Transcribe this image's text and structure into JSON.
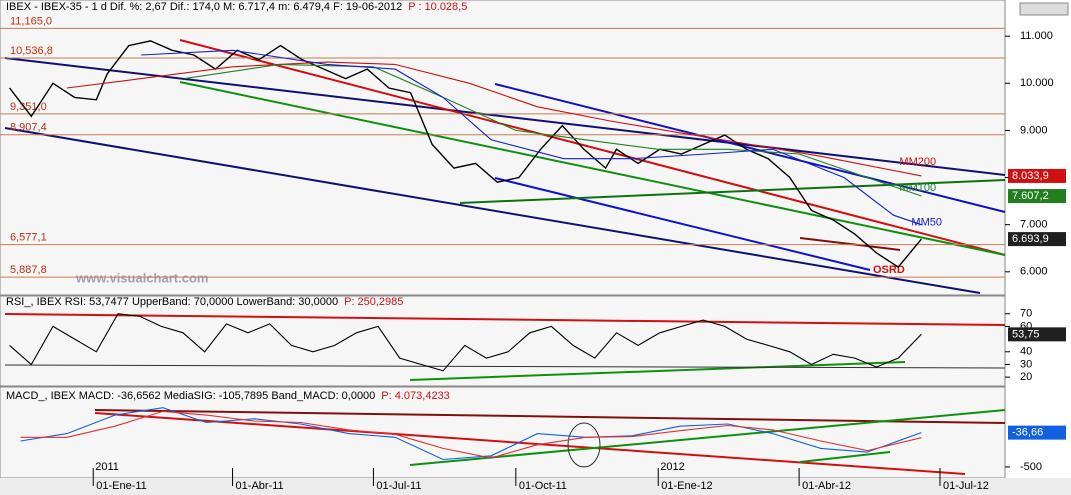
{
  "chart_data": [
    {
      "type": "line",
      "header": "IBEX - IBEX-35 -  1 d Dif. %: 2,67 Dif.: 174,0 M: 6.717,4 m: 6.479,4 F: 19-06-2012",
      "header_p": "P : 10.028,5",
      "watermark": "www.visualchart.com",
      "annotation": "OSRD",
      "ylim": [
        5550,
        11470
      ],
      "yticks": [
        {
          "value": 11000,
          "label": "11.000"
        },
        {
          "value": 10000,
          "label": "10.000"
        },
        {
          "value": 9000,
          "label": "9.000"
        },
        {
          "value": 8000,
          "label": "8.000"
        },
        {
          "value": 7000,
          "label": "7.000"
        },
        {
          "value": 6000,
          "label": "6.000"
        }
      ],
      "levels": [
        {
          "value": 11165,
          "label": "11,165,0"
        },
        {
          "value": 10536.8,
          "label": "10,536,8"
        },
        {
          "value": 9351,
          "label": "9,351,0"
        },
        {
          "value": 8907.4,
          "label": "8,907,4"
        },
        {
          "value": 6577.1,
          "label": "6,577,1"
        },
        {
          "value": 5887.8,
          "label": "5,887,8"
        }
      ],
      "series": [
        {
          "color": "#000000",
          "tag": "6.693,9",
          "x": [
            "2010-11-08",
            "2010-11-22",
            "2010-12-06",
            "2010-12-20",
            "2011-01-03",
            "2011-01-10",
            "2011-01-24",
            "2011-02-07",
            "2011-02-21",
            "2011-03-07",
            "2011-03-21",
            "2011-04-04",
            "2011-04-18",
            "2011-05-02",
            "2011-05-16",
            "2011-05-30",
            "2011-06-13",
            "2011-06-27",
            "2011-07-11",
            "2011-07-25",
            "2011-08-08",
            "2011-08-22",
            "2011-09-05",
            "2011-09-19",
            "2011-10-03",
            "2011-10-17",
            "2011-10-31",
            "2011-11-14",
            "2011-11-28",
            "2011-12-05",
            "2011-12-19",
            "2012-01-02",
            "2012-01-16",
            "2012-01-30",
            "2012-02-13",
            "2012-02-27",
            "2012-03-12",
            "2012-03-26",
            "2012-04-09",
            "2012-04-23",
            "2012-05-07",
            "2012-05-21",
            "2012-06-04",
            "2012-06-19"
          ],
          "values": [
            9900,
            9300,
            10000,
            9700,
            9650,
            10200,
            10800,
            10900,
            10700,
            10600,
            10300,
            10700,
            10500,
            10800,
            10500,
            10300,
            10100,
            10300,
            9900,
            9800,
            8700,
            8200,
            8300,
            7900,
            8000,
            8600,
            9100,
            8600,
            8200,
            8600,
            8300,
            8600,
            8500,
            8700,
            8900,
            8600,
            8400,
            8000,
            7300,
            7100,
            6800,
            6400,
            6100,
            6693.9
          ]
        },
        {
          "name": "MM200",
          "color": "#d01010",
          "tag": "8.033,9",
          "x": [
            "2010-12-15",
            "2011-02-01",
            "2011-04-01",
            "2011-06-01",
            "2011-07-15",
            "2011-09-01",
            "2011-10-15",
            "2011-12-01",
            "2012-01-15",
            "2012-03-01",
            "2012-04-15",
            "2012-06-19"
          ],
          "values": [
            9900,
            10100,
            10350,
            10450,
            10400,
            10000,
            9500,
            9200,
            8950,
            8700,
            8450,
            8033.9
          ]
        },
        {
          "name": "MM100",
          "color": "#208020",
          "tag": "7.607,2",
          "x": [
            "2011-03-01",
            "2011-05-01",
            "2011-07-01",
            "2011-08-15",
            "2011-10-01",
            "2011-11-15",
            "2012-01-01",
            "2012-02-15",
            "2012-04-01",
            "2012-05-15",
            "2012-06-19"
          ],
          "values": [
            10100,
            10400,
            10350,
            9700,
            9000,
            8800,
            8600,
            8600,
            8500,
            8000,
            7607.2
          ]
        },
        {
          "name": "MM50",
          "color": "#1020d0",
          "x": [
            "2011-02-01",
            "2011-04-01",
            "2011-06-01",
            "2011-07-15",
            "2011-08-15",
            "2011-09-15",
            "2011-11-01",
            "2011-12-15",
            "2012-02-01",
            "2012-03-15",
            "2012-04-30",
            "2012-06-01",
            "2012-06-19"
          ],
          "values": [
            10600,
            10700,
            10400,
            10300,
            9700,
            8800,
            8400,
            8400,
            8500,
            8600,
            8000,
            7200,
            7000
          ]
        }
      ]
    },
    {
      "type": "line",
      "header": "RSI_, IBEX RSI: 53,7477 UpperBand: 70,0000 LowerBand: 30,0000",
      "header_p": "P: 250,2985",
      "ylim": [
        13,
        84
      ],
      "yticks": [
        70,
        60,
        40,
        30,
        20
      ],
      "series": [
        {
          "color": "#000000",
          "tag": "53,75",
          "x": [
            "2010-11-08",
            "2010-11-22",
            "2010-12-06",
            "2010-12-20",
            "2011-01-03",
            "2011-01-17",
            "2011-01-31",
            "2011-02-14",
            "2011-02-28",
            "2011-03-14",
            "2011-03-28",
            "2011-04-11",
            "2011-04-25",
            "2011-05-09",
            "2011-05-23",
            "2011-06-06",
            "2011-06-20",
            "2011-07-04",
            "2011-07-18",
            "2011-08-01",
            "2011-08-15",
            "2011-08-29",
            "2011-09-12",
            "2011-09-26",
            "2011-10-10",
            "2011-10-24",
            "2011-11-07",
            "2011-11-21",
            "2011-12-05",
            "2011-12-19",
            "2012-01-02",
            "2012-01-16",
            "2012-01-30",
            "2012-02-13",
            "2012-02-27",
            "2012-03-12",
            "2012-03-26",
            "2012-04-09",
            "2012-04-23",
            "2012-05-07",
            "2012-05-21",
            "2012-06-04",
            "2012-06-19"
          ],
          "values": [
            45,
            30,
            60,
            50,
            40,
            70,
            68,
            60,
            55,
            40,
            62,
            55,
            62,
            45,
            40,
            45,
            55,
            60,
            35,
            30,
            25,
            45,
            35,
            40,
            55,
            60,
            45,
            35,
            55,
            45,
            55,
            60,
            65,
            60,
            50,
            45,
            40,
            30,
            38,
            35,
            28,
            35,
            53.7477
          ]
        }
      ]
    },
    {
      "type": "line",
      "header": "MACD_, IBEX MACD: -36,6562 MediaSIG: -105,7895 Band_MACD: 0,0000",
      "header_p": "P: 4.073,4233",
      "ylim": [
        -650,
        580
      ],
      "yticks": [
        {
          "value": -500,
          "label": "-500"
        }
      ],
      "xlim": [
        "2010-11-05",
        "2012-08-12"
      ],
      "xticks": [
        {
          "value": "2011-01-01",
          "label": "01-Ene-11"
        },
        {
          "value": "2011-04-01",
          "label": "01-Abr-11"
        },
        {
          "value": "2011-07-01",
          "label": "01-Jul-11"
        },
        {
          "value": "2011-10-01",
          "label": "01-Oct-11"
        },
        {
          "value": "2012-01-01",
          "label": "01-Ene-12"
        },
        {
          "value": "2012-04-01",
          "label": "01-Abr-12"
        },
        {
          "value": "2012-07-01",
          "label": "01-Jul-12"
        }
      ],
      "years": [
        {
          "value": "2011-01-01",
          "label": "2011"
        },
        {
          "value": "2012-01-01",
          "label": "2012"
        }
      ],
      "series": [
        {
          "color": "#1060e0",
          "tag": "-36,66",
          "x": [
            "2010-11-15",
            "2010-12-15",
            "2011-01-15",
            "2011-02-15",
            "2011-03-15",
            "2011-04-15",
            "2011-05-15",
            "2011-06-15",
            "2011-07-15",
            "2011-08-15",
            "2011-09-15",
            "2011-10-15",
            "2011-11-15",
            "2011-12-15",
            "2012-01-15",
            "2012-02-15",
            "2012-03-15",
            "2012-04-15",
            "2012-05-15",
            "2012-06-19"
          ],
          "values": [
            -150,
            -50,
            200,
            300,
            100,
            150,
            80,
            -50,
            -100,
            -400,
            -350,
            -50,
            -100,
            -80,
            50,
            80,
            -50,
            -250,
            -300,
            -36.6562
          ]
        },
        {
          "color": "#e03030",
          "x": [
            "2010-11-15",
            "2010-12-15",
            "2011-01-15",
            "2011-02-15",
            "2011-03-15",
            "2011-04-15",
            "2011-05-15",
            "2011-06-15",
            "2011-07-15",
            "2011-08-15",
            "2011-09-15",
            "2011-10-15",
            "2011-11-15",
            "2011-12-15",
            "2012-01-15",
            "2012-02-15",
            "2012-03-15",
            "2012-04-15",
            "2012-05-15",
            "2012-06-19"
          ],
          "values": [
            -100,
            -100,
            50,
            250,
            200,
            120,
            100,
            0,
            -60,
            -250,
            -380,
            -200,
            -100,
            -90,
            -10,
            60,
            0,
            -150,
            -280,
            -105.7895
          ]
        }
      ]
    }
  ]
}
